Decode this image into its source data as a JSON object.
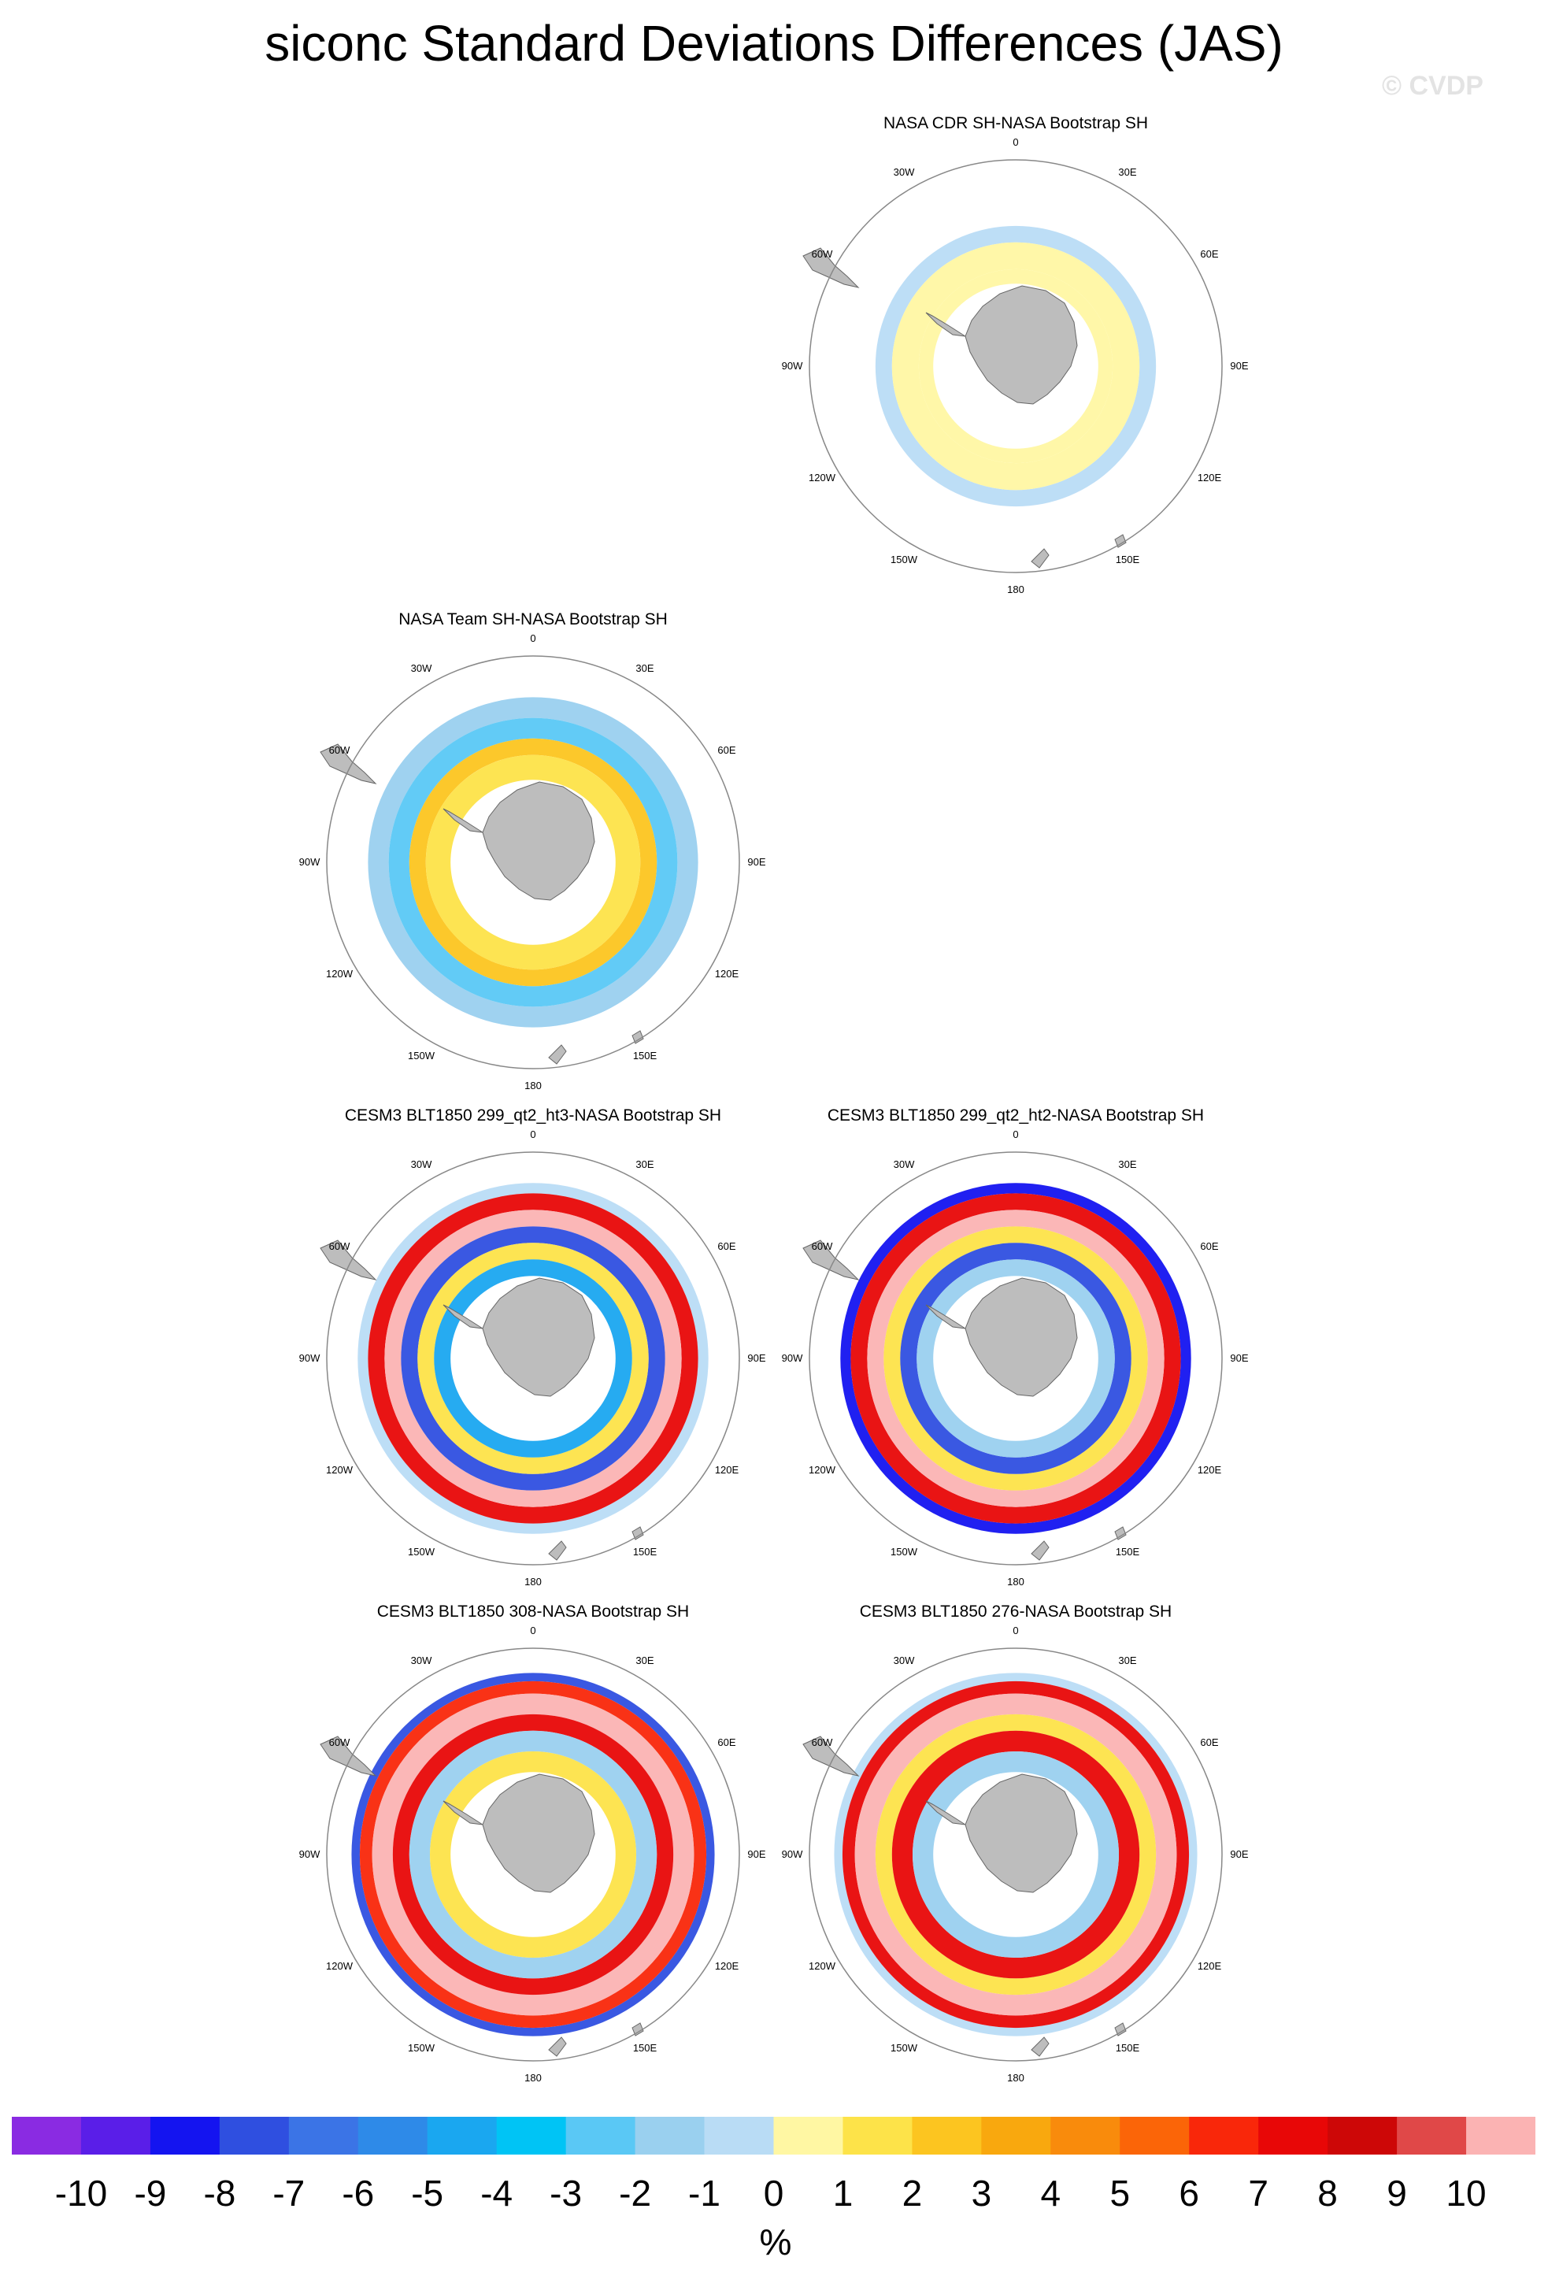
{
  "title": "siconc Standard Deviations Differences (JAS)",
  "watermark": "© CVDP",
  "lon_labels": [
    "0",
    "30E",
    "60E",
    "90E",
    "120E",
    "150E",
    "180",
    "150W",
    "120W",
    "90W",
    "60W",
    "30W"
  ],
  "colors": {
    "land": "#bdbdbd",
    "circle": "#888888",
    "palette": [
      "#8a2be2",
      "#5a1ee8",
      "#1414f0",
      "#2f4fe0",
      "#3b74e6",
      "#2e8ae8",
      "#1aa7f0",
      "#00c4f5",
      "#5ac8f5",
      "#9ad0ef",
      "#b9dcf5",
      "#fff7a3",
      "#fde349",
      "#fcc520",
      "#f9a80e",
      "#f98b0c",
      "#fb6508",
      "#f9270a",
      "#e80707",
      "#cd0707",
      "#e04848",
      "#fbb3b3"
    ]
  },
  "panels": [
    {
      "id": "cdr",
      "title": "NASA CDR SH-NASA Bootstrap SH"
    },
    {
      "id": "team",
      "title": "NASA Team SH-NASA Bootstrap SH"
    },
    {
      "id": "ht3",
      "title": "CESM3 BLT1850 299_qt2_ht3-NASA Bootstrap SH"
    },
    {
      "id": "ht2",
      "title": "CESM3 BLT1850 299_qt2_ht2-NASA Bootstrap SH"
    },
    {
      "id": "b308",
      "title": "CESM3 BLT1850 308-NASA Bootstrap SH"
    },
    {
      "id": "b276",
      "title": "CESM3 BLT1850 276-NASA Bootstrap SH"
    }
  ],
  "chart_data": {
    "type": "heatmap",
    "projection": "south polar stereographic",
    "colorbar": {
      "labels": [
        "-10",
        "-9",
        "-8",
        "-7",
        "-6",
        "-5",
        "-4",
        "-3",
        "-2",
        "-1",
        "0",
        "1",
        "2",
        "3",
        "4",
        "5",
        "6",
        "7",
        "8",
        "9",
        "10"
      ],
      "units": "%"
    },
    "panel_bands": {
      "cdr": [
        {
          "r_in": 0.4,
          "r_out": 0.47,
          "color_index": 11
        },
        {
          "r_in": 0.47,
          "r_out": 0.6,
          "color_index": 11
        },
        {
          "r_in": 0.6,
          "r_out": 0.68,
          "color_index": 10
        }
      ],
      "team": [
        {
          "r_in": 0.4,
          "r_out": 0.52,
          "color_index": 12
        },
        {
          "r_in": 0.52,
          "r_out": 0.6,
          "color_index": 13
        },
        {
          "r_in": 0.6,
          "r_out": 0.7,
          "color_index": 8
        },
        {
          "r_in": 0.7,
          "r_out": 0.8,
          "color_index": 9
        }
      ],
      "ht3": [
        {
          "r_in": 0.4,
          "r_out": 0.48,
          "color_index": 6
        },
        {
          "r_in": 0.48,
          "r_out": 0.56,
          "color_index": 12
        },
        {
          "r_in": 0.56,
          "r_out": 0.64,
          "color_index": 3
        },
        {
          "r_in": 0.64,
          "r_out": 0.72,
          "color_index": 21
        },
        {
          "r_in": 0.72,
          "r_out": 0.8,
          "color_index": 18
        },
        {
          "r_in": 0.8,
          "r_out": 0.85,
          "color_index": 10
        }
      ],
      "ht2": [
        {
          "r_in": 0.4,
          "r_out": 0.48,
          "color_index": 9
        },
        {
          "r_in": 0.48,
          "r_out": 0.56,
          "color_index": 3
        },
        {
          "r_in": 0.56,
          "r_out": 0.64,
          "color_index": 12
        },
        {
          "r_in": 0.64,
          "r_out": 0.72,
          "color_index": 21
        },
        {
          "r_in": 0.72,
          "r_out": 0.8,
          "color_index": 18
        },
        {
          "r_in": 0.8,
          "r_out": 0.85,
          "color_index": 2
        }
      ],
      "b308": [
        {
          "r_in": 0.4,
          "r_out": 0.5,
          "color_index": 12
        },
        {
          "r_in": 0.5,
          "r_out": 0.6,
          "color_index": 9
        },
        {
          "r_in": 0.6,
          "r_out": 0.68,
          "color_index": 18
        },
        {
          "r_in": 0.68,
          "r_out": 0.78,
          "color_index": 21
        },
        {
          "r_in": 0.78,
          "r_out": 0.84,
          "color_index": 17
        },
        {
          "r_in": 0.84,
          "r_out": 0.88,
          "color_index": 3
        }
      ],
      "b276": [
        {
          "r_in": 0.4,
          "r_out": 0.5,
          "color_index": 9
        },
        {
          "r_in": 0.5,
          "r_out": 0.6,
          "color_index": 18
        },
        {
          "r_in": 0.6,
          "r_out": 0.68,
          "color_index": 12
        },
        {
          "r_in": 0.68,
          "r_out": 0.78,
          "color_index": 21
        },
        {
          "r_in": 0.78,
          "r_out": 0.84,
          "color_index": 18
        },
        {
          "r_in": 0.84,
          "r_out": 0.88,
          "color_index": 10
        }
      ]
    }
  }
}
